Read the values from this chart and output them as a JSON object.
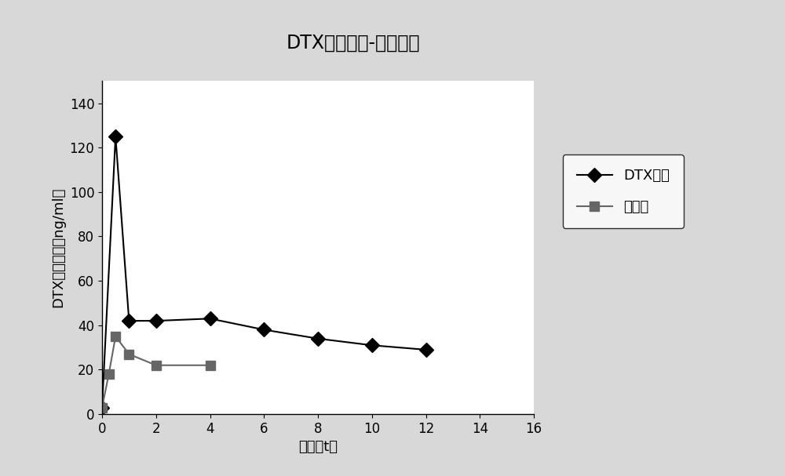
{
  "title": "DTX血药浓度-时间曲线",
  "xlabel": "时间（t）",
  "ylabel": "DTX血药浓度（ng/ml）",
  "xlim": [
    0,
    16
  ],
  "ylim": [
    0,
    150
  ],
  "xticks": [
    0,
    2,
    4,
    6,
    8,
    10,
    12,
    14,
    16
  ],
  "yticks": [
    0,
    20,
    40,
    60,
    80,
    100,
    120,
    140
  ],
  "series": [
    {
      "label": "DTX胶束",
      "x": [
        0,
        0.5,
        1,
        2,
        4,
        6,
        8,
        10,
        12
      ],
      "y": [
        3,
        125,
        42,
        42,
        43,
        38,
        34,
        31,
        29
      ],
      "color": "#000000",
      "marker": "D",
      "markersize": 9,
      "linewidth": 1.5
    },
    {
      "label": "泰素帝",
      "x": [
        0,
        0.25,
        0.5,
        1,
        2,
        4
      ],
      "y": [
        3,
        18,
        35,
        27,
        22,
        22
      ],
      "color": "#666666",
      "marker": "s",
      "markersize": 9,
      "linewidth": 1.5
    }
  ],
  "title_fontsize": 17,
  "label_fontsize": 13,
  "tick_fontsize": 12,
  "legend_fontsize": 13,
  "background_color": "#d8d8d8",
  "plot_bg_color": "#ffffff"
}
